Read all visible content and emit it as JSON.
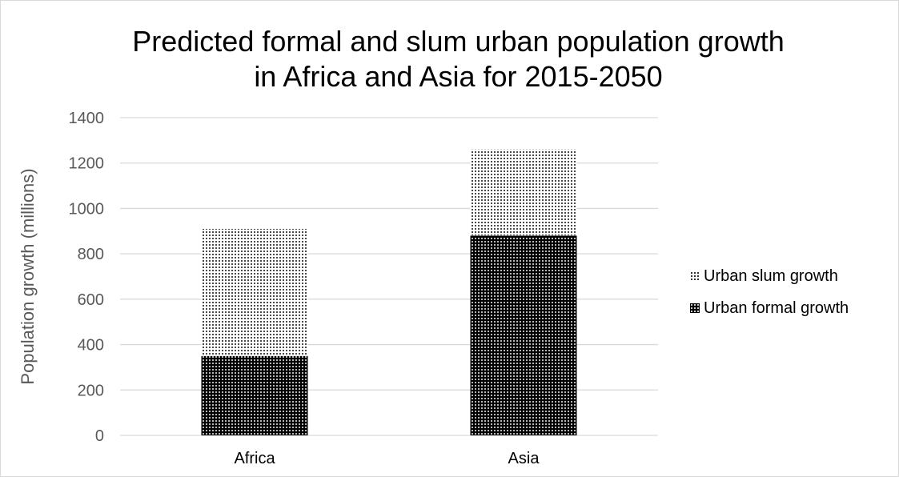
{
  "chart_data": {
    "type": "bar",
    "stacked": true,
    "title": [
      "Predicted formal and slum urban population growth",
      "in Africa and Asia for 2015-2050"
    ],
    "ylabel": "Population growth (millions)",
    "xlabel": "",
    "categories": [
      "Africa",
      "Asia"
    ],
    "ylim": [
      0,
      1400
    ],
    "yticks": [
      "0",
      "200",
      "400",
      "600",
      "800",
      "1000",
      "1200",
      "1400"
    ],
    "grid": true,
    "legend_position": "right",
    "series": [
      {
        "name": "Urban formal growth",
        "values": [
          350,
          880
        ],
        "pattern": "white-dots-on-black",
        "color": "#000000"
      },
      {
        "name": "Urban slum growth",
        "values": [
          560,
          380
        ],
        "pattern": "black-dots-on-white",
        "color": "#000000"
      }
    ],
    "legend": [
      "Urban slum growth",
      "Urban formal growth"
    ]
  }
}
